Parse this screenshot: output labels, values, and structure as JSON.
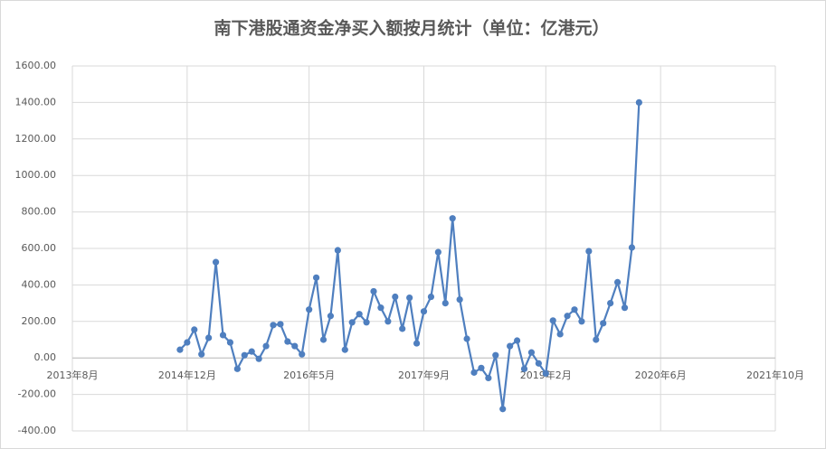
{
  "chart_data": {
    "type": "line",
    "title": "南下港股通资金净买入额按月统计（单位：亿港元）",
    "x": [
      "2014-11",
      "2014-12",
      "2015-01",
      "2015-02",
      "2015-03",
      "2015-04",
      "2015-05",
      "2015-06",
      "2015-07",
      "2015-08",
      "2015-09",
      "2015-10",
      "2015-11",
      "2015-12",
      "2016-01",
      "2016-02",
      "2016-03",
      "2016-04",
      "2016-05",
      "2016-06",
      "2016-07",
      "2016-08",
      "2016-09",
      "2016-10",
      "2016-11",
      "2016-12",
      "2017-01",
      "2017-02",
      "2017-03",
      "2017-04",
      "2017-05",
      "2017-06",
      "2017-07",
      "2017-08",
      "2017-09",
      "2017-10",
      "2017-11",
      "2017-12",
      "2018-01",
      "2018-02",
      "2018-03",
      "2018-04",
      "2018-05",
      "2018-06",
      "2018-07",
      "2018-08",
      "2018-09",
      "2018-10",
      "2018-11",
      "2018-12",
      "2019-01",
      "2019-02",
      "2019-03",
      "2019-04",
      "2019-05",
      "2019-06",
      "2019-07",
      "2019-08",
      "2019-09",
      "2019-10",
      "2019-11",
      "2019-12",
      "2020-01",
      "2020-02",
      "2020-03"
    ],
    "values": [
      45,
      85,
      155,
      20,
      110,
      525,
      125,
      85,
      -60,
      15,
      35,
      -5,
      65,
      180,
      185,
      90,
      65,
      20,
      265,
      440,
      100,
      230,
      590,
      45,
      195,
      240,
      195,
      365,
      275,
      200,
      335,
      160,
      330,
      80,
      255,
      335,
      580,
      300,
      765,
      320,
      105,
      -80,
      -55,
      -110,
      15,
      -280,
      65,
      95,
      -60,
      30,
      -30,
      -85,
      205,
      130,
      230,
      265,
      200,
      585,
      100,
      190,
      300,
      415,
      275,
      605,
      1400
    ],
    "color": "#4f7fbf",
    "xlim": [
      "2013-08",
      "2021-10"
    ],
    "xticks": [
      {
        "value": "2013-08",
        "label": "2013年8月"
      },
      {
        "value": "2014-12",
        "label": "2014年12月"
      },
      {
        "value": "2016-05",
        "label": "2016年5月"
      },
      {
        "value": "2017-09",
        "label": "2017年9月"
      },
      {
        "value": "2019-02",
        "label": "2019年2月"
      },
      {
        "value": "2020-06",
        "label": "2020年6月"
      },
      {
        "value": "2021-10",
        "label": "2021年10月"
      }
    ],
    "ylim": [
      -400,
      1600
    ],
    "yticks": [
      {
        "value": -400,
        "label": "-400.00"
      },
      {
        "value": -200,
        "label": "-200.00"
      },
      {
        "value": 0,
        "label": "0.00"
      },
      {
        "value": 200,
        "label": "200.00"
      },
      {
        "value": 400,
        "label": "400.00"
      },
      {
        "value": 600,
        "label": "600.00"
      },
      {
        "value": 800,
        "label": "800.00"
      },
      {
        "value": 1000,
        "label": "1000.00"
      },
      {
        "value": 1200,
        "label": "1200.00"
      },
      {
        "value": 1400,
        "label": "1400.00"
      },
      {
        "value": 1600,
        "label": "1600.00"
      }
    ],
    "grid": true
  }
}
